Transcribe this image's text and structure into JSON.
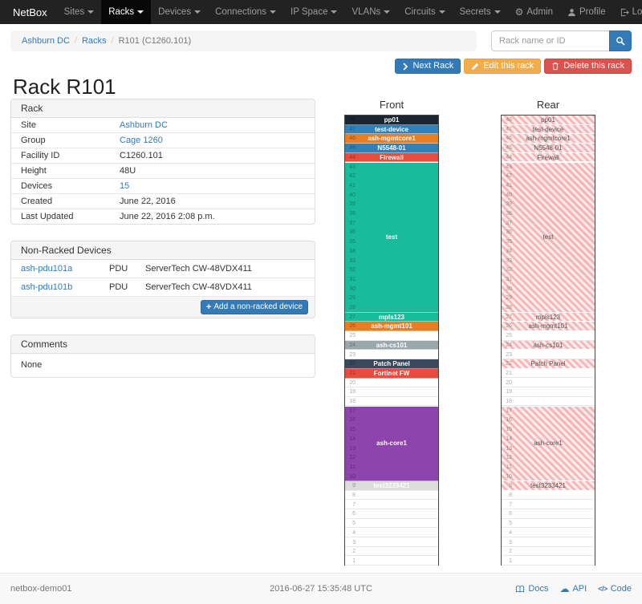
{
  "navbar": {
    "brand": "NetBox",
    "items": [
      {
        "label": "Sites",
        "active": false
      },
      {
        "label": "Racks",
        "active": true
      },
      {
        "label": "Devices",
        "active": false
      },
      {
        "label": "Connections",
        "active": false
      },
      {
        "label": "IP Space",
        "active": false
      },
      {
        "label": "VLANs",
        "active": false
      },
      {
        "label": "Circuits",
        "active": false
      },
      {
        "label": "Secrets",
        "active": false
      }
    ],
    "right": [
      {
        "label": "Admin",
        "icon": "gear-icon"
      },
      {
        "label": "Profile",
        "icon": "user-icon"
      },
      {
        "label": "Log out",
        "icon": "logout-icon"
      }
    ]
  },
  "breadcrumb": {
    "separator": "/",
    "items": [
      {
        "label": "Ashburn DC",
        "link": true
      },
      {
        "label": "Racks",
        "link": true
      },
      {
        "label": "R101 (C1260.101)",
        "link": false
      }
    ]
  },
  "search": {
    "placeholder": "Rack name or ID"
  },
  "actions": {
    "buttons": [
      {
        "label": "Next Rack",
        "icon": "chevron-right-icon",
        "style": "primary",
        "name": "next-rack-button"
      },
      {
        "label": "Edit this rack",
        "icon": "pencil-icon",
        "style": "warning",
        "name": "edit-rack-button"
      },
      {
        "label": "Delete this rack",
        "icon": "trash-icon",
        "style": "danger",
        "name": "delete-rack-button"
      }
    ]
  },
  "page_title": "Rack R101",
  "rack_panel": {
    "title": "Rack",
    "rows": [
      {
        "label": "Site",
        "value": "Ashburn DC",
        "link": true
      },
      {
        "label": "Group",
        "value": "Cage 1260",
        "link": true
      },
      {
        "label": "Facility ID",
        "value": "C1260.101",
        "link": false
      },
      {
        "label": "Height",
        "value": "48U",
        "link": false
      },
      {
        "label": "Devices",
        "value": "15",
        "link": true
      },
      {
        "label": "Created",
        "value": "June 22, 2016",
        "link": false
      },
      {
        "label": "Last Updated",
        "value": "June 22, 2016 2:08 p.m.",
        "link": false
      }
    ]
  },
  "non_racked": {
    "title": "Non-Racked Devices",
    "rows": [
      {
        "name": "ash-pdu101a",
        "role": "PDU",
        "type": "ServerTech CW-48VDX411"
      },
      {
        "name": "ash-pdu101b",
        "role": "PDU",
        "type": "ServerTech CW-48VDX411"
      }
    ],
    "add_icon": "plus-icon",
    "add_label": "Add a non-racked device"
  },
  "comments_panel": {
    "title": "Comments",
    "body": "None"
  },
  "elevation": {
    "front_title": "Front",
    "rear_title": "Rear",
    "units_total": 48,
    "colors": {
      "dark_navy": "#1b2530",
      "blue": "#3280b8",
      "orange": "#e67e22",
      "red": "#e74c3c",
      "teal": "#18bc9c",
      "gray": "#9aa8ab",
      "slate": "#3a4a5c",
      "purple": "#8e44ad",
      "light_gray": "#dcdcdc"
    },
    "front": [
      {
        "u": 48,
        "h": 1,
        "label": "pp01",
        "color": "#1b2530"
      },
      {
        "u": 47,
        "h": 1,
        "label": "test-device",
        "color": "#3280b8"
      },
      {
        "u": 46,
        "h": 1,
        "label": "ash-mgmtcore1",
        "color": "#e67e22"
      },
      {
        "u": 45,
        "h": 1,
        "label": "N5548-01",
        "color": "#3280b8"
      },
      {
        "u": 44,
        "h": 1,
        "label": "Firewall",
        "color": "#e74c3c"
      },
      {
        "u": 43,
        "h": 16,
        "label": "test",
        "color": "#18bc9c"
      },
      {
        "u": 27,
        "h": 1,
        "label": "mpls123",
        "color": "#18bc9c"
      },
      {
        "u": 26,
        "h": 1,
        "label": "ash-mgmt101",
        "color": "#e67e22"
      },
      {
        "u": 24,
        "h": 1,
        "label": "ash-cs101",
        "color": "#9aa8ab"
      },
      {
        "u": 22,
        "h": 1,
        "label": "Patch Panel",
        "color": "#3a4a5c"
      },
      {
        "u": 21,
        "h": 1,
        "label": "Fortinet FW",
        "color": "#e74c3c"
      },
      {
        "u": 17,
        "h": 8,
        "label": "ash-core1",
        "color": "#8e44ad"
      },
      {
        "u": 9,
        "h": 1,
        "label": "test3233421",
        "color": "#dcdcdc"
      }
    ],
    "rear": [
      {
        "u": 48,
        "h": 1,
        "label": "pp01"
      },
      {
        "u": 47,
        "h": 1,
        "label": "test-device"
      },
      {
        "u": 46,
        "h": 1,
        "label": "ash-mgmtcore1"
      },
      {
        "u": 45,
        "h": 1,
        "label": "N5548-01"
      },
      {
        "u": 44,
        "h": 1,
        "label": "Firewall"
      },
      {
        "u": 43,
        "h": 16,
        "label": "test"
      },
      {
        "u": 27,
        "h": 1,
        "label": "mpls123"
      },
      {
        "u": 26,
        "h": 1,
        "label": "ash-mgmt101"
      },
      {
        "u": 24,
        "h": 1,
        "label": "ash-cs101"
      },
      {
        "u": 22,
        "h": 1,
        "label": "Patch Panel"
      },
      {
        "u": 17,
        "h": 8,
        "label": "ash-core1"
      },
      {
        "u": 9,
        "h": 1,
        "label": "test3233421"
      }
    ]
  },
  "footer": {
    "hostname": "netbox-demo01",
    "timestamp": "2016-06-27 15:35:48 UTC",
    "links": [
      {
        "label": "Docs",
        "icon": "book-icon"
      },
      {
        "label": "API",
        "icon": "cloud-icon"
      },
      {
        "label": "Code",
        "icon": "code-icon"
      }
    ]
  }
}
